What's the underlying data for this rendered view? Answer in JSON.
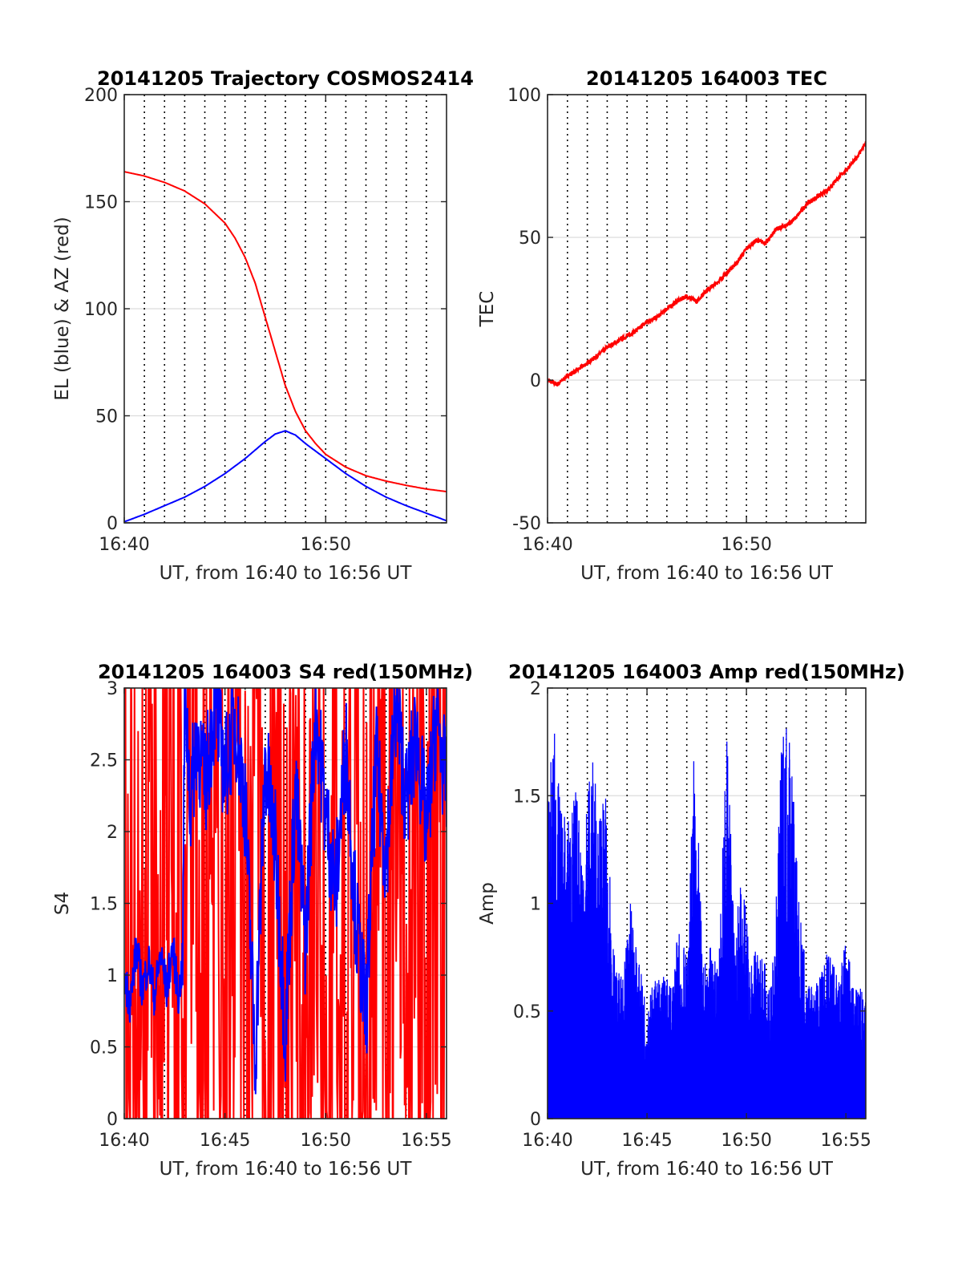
{
  "chart_data": [
    {
      "type": "line",
      "title": "20141205 Trajectory COSMOS2414",
      "xlabel": "UT, from 16:40 to 16:56 UT",
      "ylabel": "EL (blue) & AZ (red)",
      "xlim": [
        0,
        16
      ],
      "ylim": [
        0,
        200
      ],
      "xticks": [
        {
          "value": 0,
          "label": "16:40"
        },
        {
          "value": 10,
          "label": "16:50"
        }
      ],
      "yticks": [
        {
          "value": 0,
          "label": "0"
        },
        {
          "value": 50,
          "label": "50"
        },
        {
          "value": 100,
          "label": "100"
        },
        {
          "value": 150,
          "label": "150"
        },
        {
          "value": 200,
          "label": "200"
        }
      ],
      "vlines_dotted": [
        1,
        2,
        3,
        4,
        5,
        6,
        7,
        8,
        9,
        10,
        11,
        12,
        13,
        14,
        15
      ],
      "grid": true,
      "series": [
        {
          "color": "#ff0000",
          "x": [
            0,
            1,
            2,
            3,
            4,
            5,
            5.5,
            6,
            6.5,
            7,
            7.5,
            8,
            8.5,
            9,
            9.5,
            10,
            11,
            12,
            13,
            14,
            15,
            16
          ],
          "y": [
            164,
            162,
            159,
            155,
            149,
            140,
            133,
            124,
            112,
            96,
            80,
            64,
            52,
            43,
            37,
            32,
            26,
            22,
            19.5,
            17.5,
            15.8,
            14.6
          ]
        },
        {
          "color": "#0000ff",
          "x": [
            0,
            1,
            2,
            3,
            4,
            5,
            6,
            7,
            7.5,
            8,
            8.5,
            9,
            10,
            11,
            12,
            13,
            14,
            15,
            16
          ],
          "y": [
            0.5,
            4,
            8,
            12,
            17,
            23,
            30,
            38,
            41.5,
            43,
            41,
            37,
            30,
            23,
            17,
            12,
            8,
            4.5,
            1
          ]
        }
      ]
    },
    {
      "type": "line",
      "title": "20141205 164003 TEC",
      "xlabel": "UT, from 16:40 to 16:56 UT",
      "ylabel": "TEC",
      "xlim": [
        0,
        16
      ],
      "ylim": [
        -50,
        100
      ],
      "xticks": [
        {
          "value": 0,
          "label": "16:40"
        },
        {
          "value": 10,
          "label": "16:50"
        }
      ],
      "yticks": [
        {
          "value": -50,
          "label": "-50"
        },
        {
          "value": 0,
          "label": "0"
        },
        {
          "value": 50,
          "label": "50"
        },
        {
          "value": 100,
          "label": "100"
        }
      ],
      "vlines_dotted": [
        1,
        2,
        3,
        4,
        5,
        6,
        7,
        8,
        9,
        10,
        11,
        12,
        13,
        14,
        15
      ],
      "grid": true,
      "series": [
        {
          "color": "#ff0000",
          "x": [
            0,
            0.5,
            1,
            1.5,
            2,
            2.5,
            3,
            3.5,
            4,
            4.5,
            5,
            5.5,
            6,
            6.5,
            7,
            7.5,
            8,
            8.5,
            9,
            9.5,
            10,
            10.5,
            11,
            11.5,
            12,
            12.5,
            13,
            13.5,
            14,
            14.5,
            15,
            15.5,
            16
          ],
          "y": [
            0,
            -1.5,
            1.5,
            3.5,
            6,
            8.5,
            11.5,
            13.5,
            15.5,
            17.5,
            20.5,
            22,
            25,
            27.5,
            29.5,
            27.5,
            31.5,
            34,
            37.5,
            41,
            46,
            49,
            48,
            53,
            54,
            57,
            61.5,
            64,
            66,
            70,
            73.5,
            77.5,
            83
          ]
        }
      ]
    },
    {
      "type": "line",
      "title": "20141205 164003 S4 red(150MHz)",
      "xlabel": "UT, from 16:40 to 16:56 UT",
      "ylabel": "S4",
      "xlim": [
        0,
        16
      ],
      "ylim": [
        0,
        3
      ],
      "xticks": [
        {
          "value": 0,
          "label": "16:40"
        },
        {
          "value": 5,
          "label": "16:45"
        },
        {
          "value": 10,
          "label": "16:50"
        },
        {
          "value": 15,
          "label": "16:55"
        }
      ],
      "yticks": [
        {
          "value": 0,
          "label": "0"
        },
        {
          "value": 0.5,
          "label": "0.5"
        },
        {
          "value": 1,
          "label": "1"
        },
        {
          "value": 1.5,
          "label": "1.5"
        },
        {
          "value": 2,
          "label": "2"
        },
        {
          "value": 2.5,
          "label": "2.5"
        },
        {
          "value": 3,
          "label": "3"
        }
      ],
      "vlines_dotted": [
        1,
        2,
        3,
        4,
        5,
        6,
        7,
        8,
        9,
        10,
        11,
        12,
        13,
        14,
        15
      ],
      "grid": true,
      "series": [
        {
          "color": "#ff0000",
          "x": [
            0,
            0.2,
            0.4,
            0.6,
            0.8,
            1,
            1.2,
            1.4,
            1.6,
            1.8,
            2,
            2.2,
            2.4,
            2.6,
            2.8,
            3,
            3.2,
            3.5,
            4,
            4.5,
            5,
            5.5,
            6,
            6.5,
            7,
            7.5,
            8,
            8.5,
            9,
            9.5,
            10,
            10.5,
            11,
            11.5,
            12,
            12.5,
            13,
            13.5,
            14,
            14.5,
            15,
            15.5,
            16
          ],
          "y": [
            3,
            0,
            3,
            0,
            3,
            0,
            3,
            0,
            3,
            0,
            3,
            0,
            3,
            0,
            3,
            0,
            3,
            2.2,
            1.7,
            2.6,
            0.3,
            2.9,
            0.2,
            3,
            0,
            2.5,
            0,
            2.2,
            0.1,
            2.8,
            0,
            3,
            0.2,
            3,
            0,
            2.9,
            0.3,
            3,
            0.1,
            3,
            0.2,
            3,
            1.5
          ]
        },
        {
          "color": "#0000ff",
          "x": [
            0,
            0.3,
            0.6,
            0.9,
            1.2,
            1.5,
            1.8,
            2.1,
            2.4,
            2.7,
            2.9,
            3,
            3.3,
            3.6,
            4,
            4.5,
            5,
            5.5,
            6,
            6.5,
            7,
            7.5,
            8,
            8.5,
            9,
            9.5,
            10,
            10.5,
            11,
            11.5,
            12,
            12.5,
            13,
            13.5,
            14,
            14.5,
            15,
            15.5,
            16
          ],
          "y": [
            1,
            0.8,
            1.2,
            0.9,
            1.1,
            0.85,
            1.15,
            0.9,
            1.2,
            0.85,
            1.1,
            3,
            2.2,
            2.7,
            2.3,
            2.9,
            2.4,
            2.8,
            2.2,
            0.4,
            2.5,
            1.9,
            0.6,
            2.3,
            1.2,
            2.9,
            2.1,
            1.6,
            2.6,
            1.4,
            0.7,
            2.5,
            1.8,
            2.9,
            2.2,
            2.7,
            2,
            2.8,
            2.3
          ]
        }
      ]
    },
    {
      "type": "bar",
      "title": "20141205 164003 Amp red(150MHz)",
      "xlabel": "UT, from 16:40 to 16:56 UT",
      "ylabel": "Amp",
      "xlim": [
        0,
        16
      ],
      "ylim": [
        0,
        2
      ],
      "xticks": [
        {
          "value": 0,
          "label": "16:40"
        },
        {
          "value": 5,
          "label": "16:45"
        },
        {
          "value": 10,
          "label": "16:50"
        },
        {
          "value": 15,
          "label": "16:55"
        }
      ],
      "yticks": [
        {
          "value": 0,
          "label": "0"
        },
        {
          "value": 0.5,
          "label": "0.5"
        },
        {
          "value": 1,
          "label": "1"
        },
        {
          "value": 1.5,
          "label": "1.5"
        },
        {
          "value": 2,
          "label": "2"
        }
      ],
      "vlines_dotted": [
        1,
        2,
        3,
        4,
        5,
        6,
        7,
        8,
        9,
        10,
        11,
        12,
        13,
        14,
        15
      ],
      "grid": true,
      "series": [
        {
          "color": "#0000ff",
          "x": [
            0,
            0.3,
            0.6,
            1,
            1.4,
            1.8,
            2.2,
            2.6,
            3,
            3.4,
            3.8,
            4.2,
            4.6,
            5,
            5.4,
            5.8,
            6.2,
            6.6,
            7,
            7.4,
            7.8,
            8.2,
            8.6,
            9,
            9.4,
            9.8,
            10.2,
            10.6,
            11,
            11.4,
            11.8,
            12.2,
            12.6,
            13,
            13.4,
            13.8,
            14.2,
            14.6,
            15,
            15.4,
            16
          ],
          "y": [
            1.43,
            1.87,
            1.52,
            1.4,
            1.55,
            1.35,
            1.7,
            1.45,
            1.5,
            0.7,
            0.65,
            1.05,
            0.72,
            0.55,
            0.66,
            0.7,
            0.62,
            0.9,
            0.75,
            1.82,
            0.7,
            0.8,
            0.68,
            1.87,
            0.85,
            1.2,
            0.72,
            0.9,
            0.68,
            0.75,
            1.85,
            1.93,
            1.05,
            0.7,
            0.6,
            0.72,
            0.8,
            0.65,
            0.85,
            0.6,
            0.62
          ]
        }
      ]
    }
  ]
}
